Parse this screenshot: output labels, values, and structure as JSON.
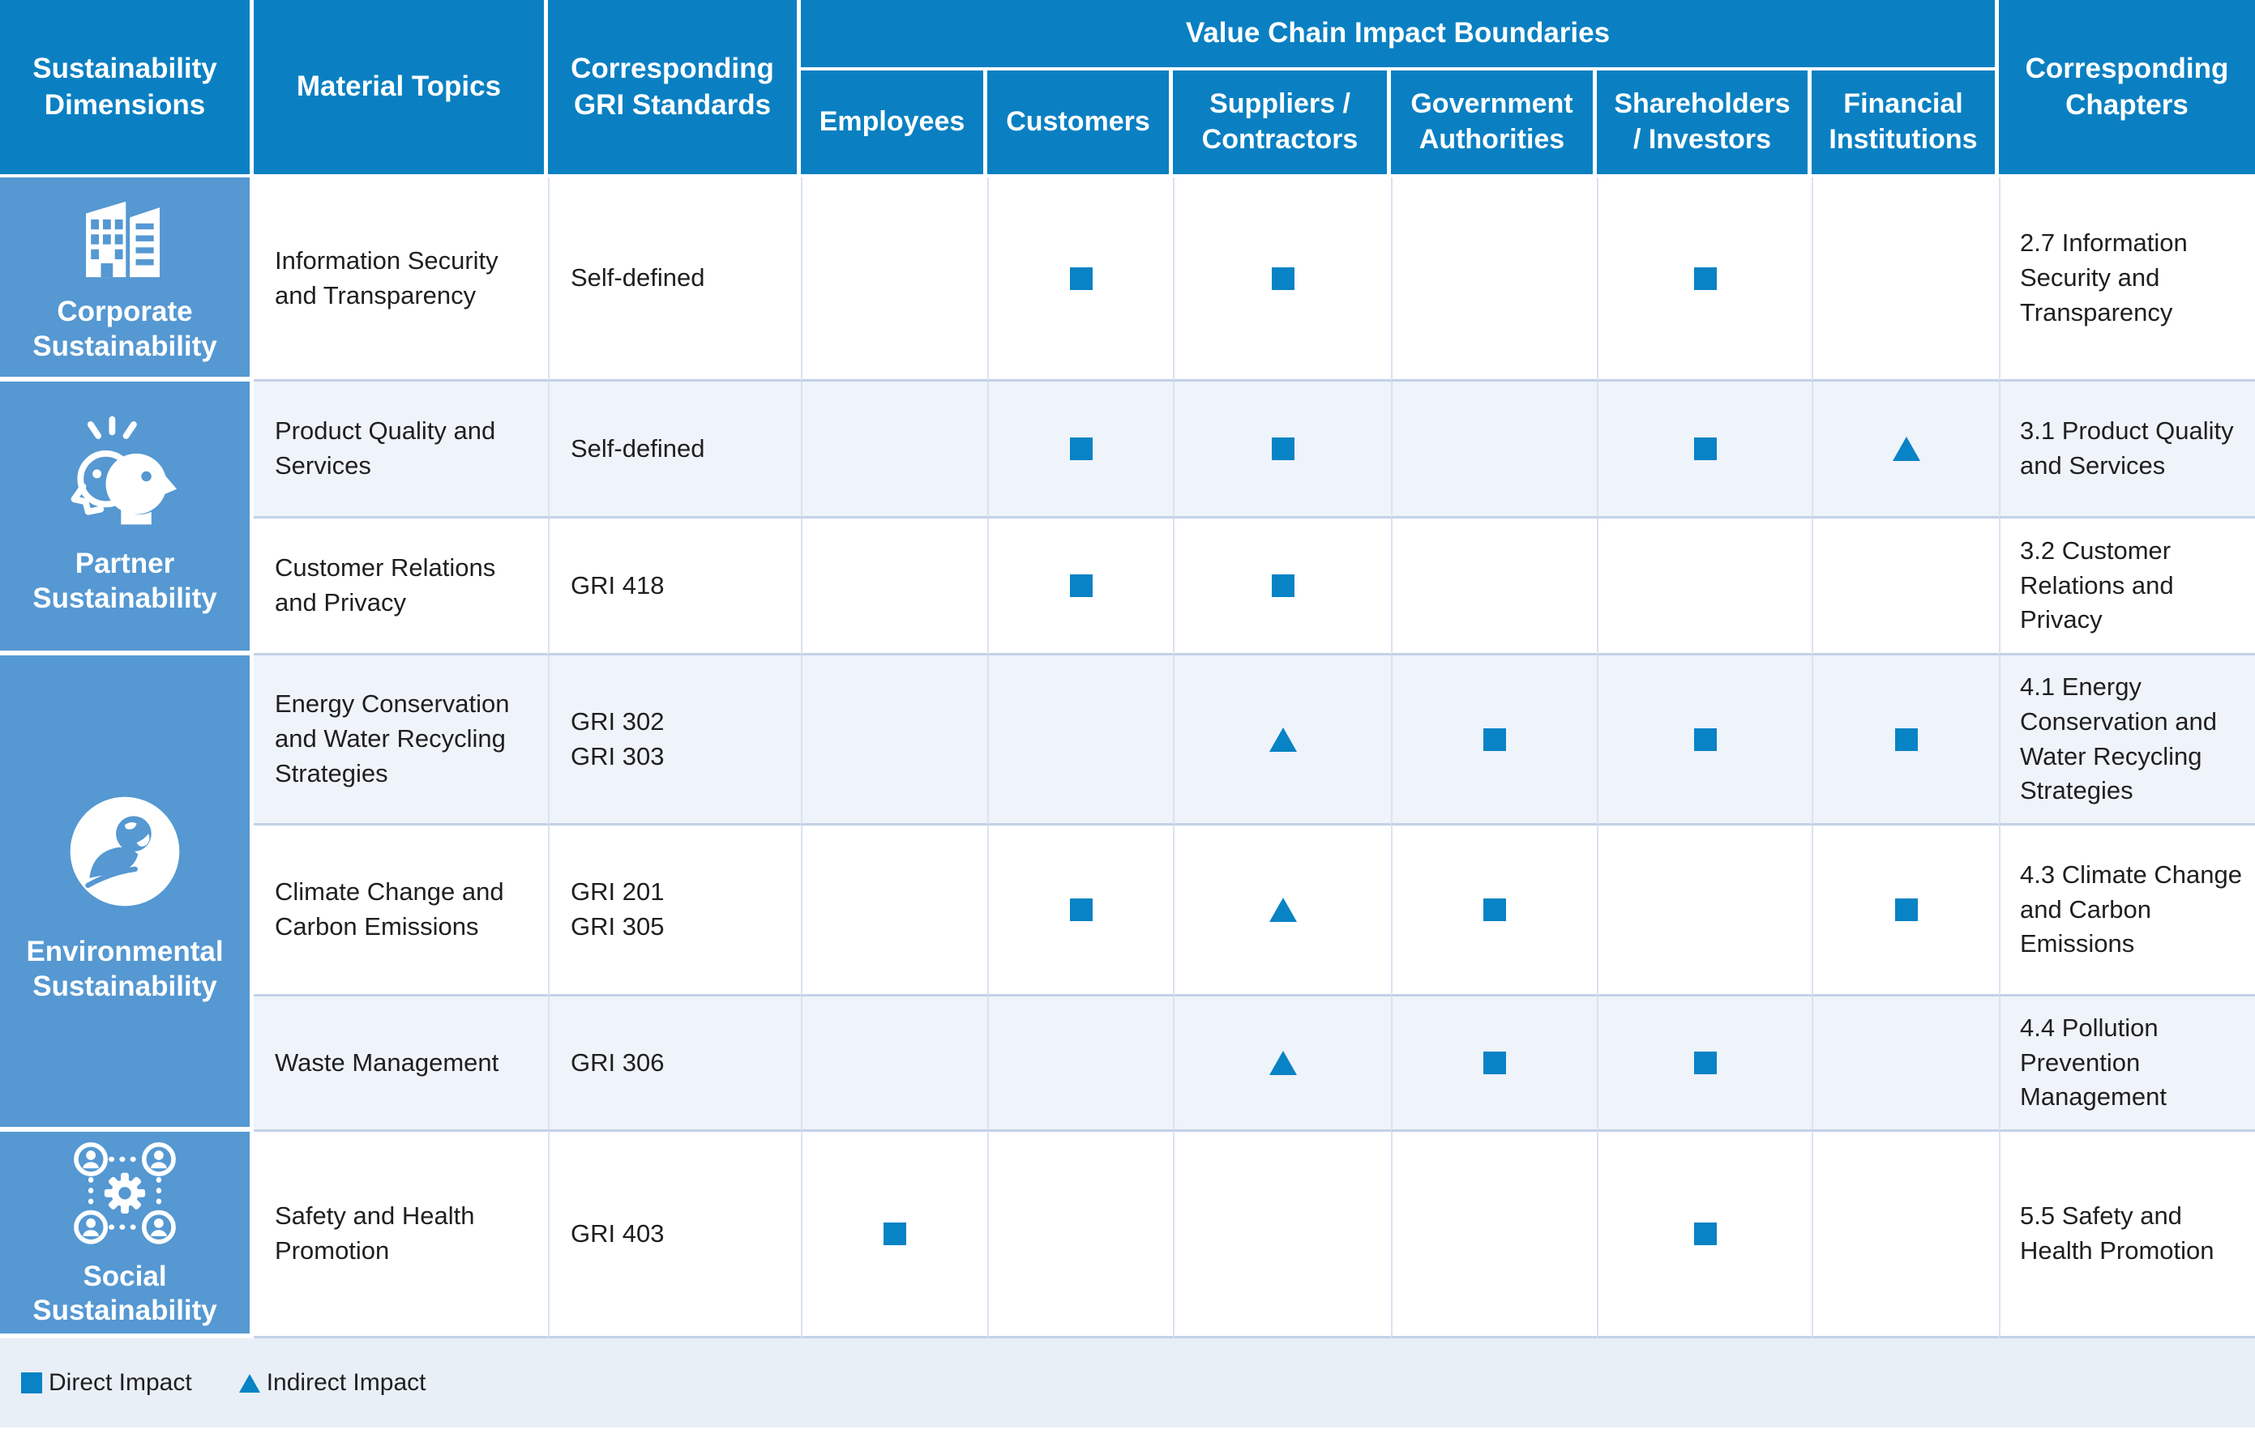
{
  "colors": {
    "header_blue": "#0A80C2",
    "dimension_blue": "#5598D2",
    "marker_blue": "#0883C5",
    "row_alt_bg": "#EFF3FA",
    "legend_bg": "#E9EFF7",
    "grid_line_horizontal": "#C2D1E7",
    "grid_line_vertical": "#D9E3F1",
    "text_dark": "#1F1F1F"
  },
  "header": {
    "dimensions": "Sustainability Dimensions",
    "material_topics": "Material Topics",
    "gri_standards": "Corresponding GRI Standards",
    "value_chain": "Value Chain Impact Boundaries",
    "chapters": "Corresponding Chapters",
    "boundaries": [
      "Employees",
      "Customers",
      "Suppliers /\nContractors",
      "Government\nAuthorities",
      "Shareholders\n/ Investors",
      "Financial\nInstitutions"
    ]
  },
  "groups": [
    {
      "label": "Corporate Sustainability",
      "icon": "corporate-buildings-icon"
    },
    {
      "label": "Partner Sustainability",
      "icon": "partner-heads-icon"
    },
    {
      "label": "Environmental Sustainability",
      "icon": "environment-globe-hand-icon"
    },
    {
      "label": "Social Sustainability",
      "icon": "social-network-gear-icon"
    }
  ],
  "rows": [
    {
      "topic": "Information Security and Transparency",
      "gri": "Self-defined",
      "impacts": [
        "",
        "direct",
        "direct",
        "",
        "direct",
        ""
      ],
      "chapter": "2.7 Information Security and Transparency"
    },
    {
      "topic": "Product Quality and Services",
      "gri": "Self-defined",
      "impacts": [
        "",
        "direct",
        "direct",
        "",
        "direct",
        "indirect"
      ],
      "chapter": "3.1 Product Quality and Services"
    },
    {
      "topic": "Customer Relations and Privacy",
      "gri": "GRI 418",
      "impacts": [
        "",
        "direct",
        "direct",
        "",
        "",
        ""
      ],
      "chapter": "3.2 Customer Relations and Privacy"
    },
    {
      "topic": "Energy Conservation and Water Recycling Strategies",
      "gri": "GRI 302\nGRI 303",
      "impacts": [
        "",
        "",
        "indirect",
        "direct",
        "direct",
        "direct"
      ],
      "chapter": "4.1 Energy Conservation and Water Recycling Strategies"
    },
    {
      "topic": "Climate Change and Carbon Emissions",
      "gri": "GRI 201\nGRI 305",
      "impacts": [
        "",
        "direct",
        "indirect",
        "direct",
        "",
        "direct"
      ],
      "chapter": "4.3 Climate Change\nand Carbon Emissions"
    },
    {
      "topic": "Waste Management",
      "gri": "GRI 306",
      "impacts": [
        "",
        "",
        "indirect",
        "direct",
        "direct",
        ""
      ],
      "chapter": "4.4 Pollution Prevention Management"
    },
    {
      "topic": "Safety and Health Promotion",
      "gri": "GRI 403",
      "impacts": [
        "direct",
        "",
        "",
        "",
        "direct",
        ""
      ],
      "chapter": "5.5 Safety and Health Promotion"
    }
  ],
  "legend": {
    "direct_label": "Direct Impact",
    "indirect_label": "Indirect Impact"
  }
}
